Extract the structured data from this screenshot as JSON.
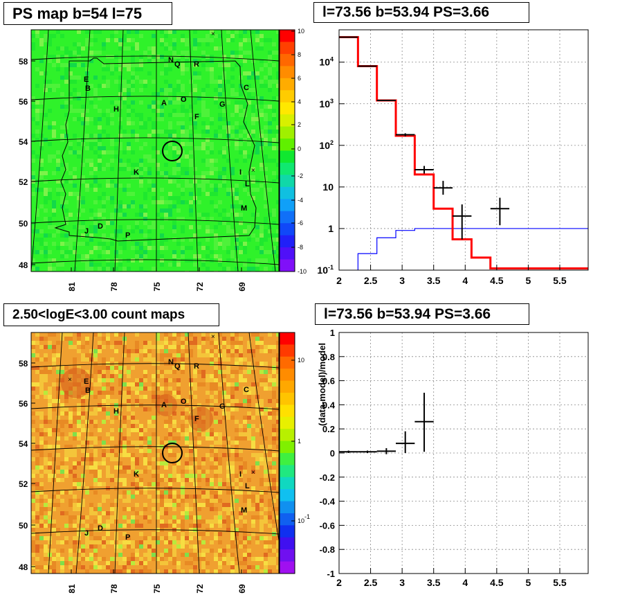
{
  "panels": {
    "top_left_title": "PS map b=54 l=75",
    "top_right_title": "l=73.56 b=53.94 PS=3.66",
    "bottom_left_title": "2.50<logE<3.00 count maps",
    "bottom_right_title": "l=73.56 b=53.94 PS=3.66"
  },
  "colors": {
    "ps_map_fill": "#2ff22a",
    "count_map_fill": "#f0a030",
    "model_red": "#ff0000",
    "background_blue": "#0000ff",
    "data_black": "#000000"
  },
  "chart_data": [
    {
      "type": "heatmap",
      "id": "ps_map",
      "x_ticks": [
        "81",
        "78",
        "75",
        "72",
        "69"
      ],
      "y_ticks": [
        "48",
        "50",
        "52",
        "54",
        "56",
        "58"
      ],
      "colorbar": {
        "min": -10,
        "max": 10,
        "ticks": [
          "10",
          "8",
          "6",
          "4",
          "2",
          "0",
          "-2",
          "-4",
          "-6",
          "-8",
          "-10"
        ]
      },
      "source_labels": [
        "N",
        "Q",
        "R",
        "E",
        "B",
        "C",
        "A",
        "O",
        "H",
        "G",
        "F",
        "K",
        "I",
        "L",
        "M",
        "D",
        "J",
        "P"
      ],
      "marked_position": {
        "l": 73.56,
        "b": 53.94
      }
    },
    {
      "type": "line",
      "id": "spectrum",
      "x_ticks": [
        "2",
        "2.5",
        "3",
        "3.5",
        "4",
        "4.5",
        "5",
        "5.5"
      ],
      "y_ticks": [
        "10^-1",
        "1",
        "10",
        "10^2",
        "10^3",
        "10^4"
      ],
      "xlim": [
        2,
        5.95
      ],
      "ylim": [
        0.1,
        60000
      ],
      "log_y": true,
      "grid": true,
      "model_steps": [
        {
          "x0": 2.0,
          "x1": 2.3,
          "y": 40000
        },
        {
          "x0": 2.3,
          "x1": 2.6,
          "y": 8000
        },
        {
          "x0": 2.6,
          "x1": 2.9,
          "y": 1200
        },
        {
          "x0": 2.9,
          "x1": 3.2,
          "y": 170
        },
        {
          "x0": 3.2,
          "x1": 3.5,
          "y": 20
        },
        {
          "x0": 3.5,
          "x1": 3.8,
          "y": 3
        },
        {
          "x0": 3.8,
          "x1": 4.1,
          "y": 0.55
        },
        {
          "x0": 4.1,
          "x1": 4.4,
          "y": 0.2
        },
        {
          "x0": 4.4,
          "x1": 5.95,
          "y": 0.11
        }
      ],
      "background_steps": [
        {
          "x0": 2.3,
          "x1": 2.6,
          "y": 0.25
        },
        {
          "x0": 2.6,
          "x1": 2.9,
          "y": 0.6
        },
        {
          "x0": 2.9,
          "x1": 3.2,
          "y": 0.9
        },
        {
          "x0": 3.2,
          "x1": 5.95,
          "y": 1.0
        }
      ],
      "data_points": [
        {
          "x": 2.15,
          "y": 40000,
          "xerr": 0.15,
          "ylo": 40000,
          "yhi": 40000
        },
        {
          "x": 2.45,
          "y": 8000,
          "xerr": 0.15,
          "ylo": 8000,
          "yhi": 8000
        },
        {
          "x": 2.75,
          "y": 1200,
          "xerr": 0.15,
          "ylo": 1200,
          "yhi": 1200
        },
        {
          "x": 3.05,
          "y": 180,
          "xerr": 0.15,
          "ylo": 165,
          "yhi": 195
        },
        {
          "x": 3.35,
          "y": 26,
          "xerr": 0.15,
          "ylo": 21,
          "yhi": 32
        },
        {
          "x": 3.65,
          "y": 9.5,
          "xerr": 0.15,
          "ylo": 6.5,
          "yhi": 14
        },
        {
          "x": 3.95,
          "y": 2,
          "xerr": 0.15,
          "ylo": 0.55,
          "yhi": 3.8
        },
        {
          "x": 4.55,
          "y": 3,
          "xerr": 0.15,
          "ylo": 1.2,
          "yhi": 5.5
        }
      ]
    },
    {
      "type": "heatmap",
      "id": "count_map",
      "x_ticks": [
        "81",
        "78",
        "75",
        "72",
        "69"
      ],
      "y_ticks": [
        "48",
        "50",
        "52",
        "54",
        "56",
        "58"
      ],
      "colorbar": {
        "log": true,
        "ticks": [
          "10",
          "1",
          "10^-1"
        ]
      },
      "source_labels": [
        "N",
        "Q",
        "R",
        "E",
        "B",
        "C",
        "A",
        "O",
        "H",
        "G",
        "F",
        "K",
        "I",
        "L",
        "M",
        "D",
        "J",
        "P"
      ],
      "marked_position": {
        "l": 73.56,
        "b": 53.94
      }
    },
    {
      "type": "scatter",
      "id": "residuals",
      "ylabel": "(data-model)/model",
      "x_ticks": [
        "2",
        "2.5",
        "3",
        "3.5",
        "4",
        "4.5",
        "5",
        "5.5"
      ],
      "y_ticks": [
        "1",
        "0.8",
        "0.6",
        "0.4",
        "0.2",
        "0",
        "-0.2",
        "-0.4",
        "-0.6",
        "-0.8",
        "-1"
      ],
      "xlim": [
        2,
        5.95
      ],
      "ylim": [
        -1,
        1
      ],
      "grid": true,
      "data_points": [
        {
          "x": 2.15,
          "y": 0.01,
          "xerr": 0.15,
          "ylo": 0.0,
          "yhi": 0.02
        },
        {
          "x": 2.45,
          "y": 0.01,
          "xerr": 0.15,
          "ylo": 0.0,
          "yhi": 0.02
        },
        {
          "x": 2.75,
          "y": 0.015,
          "xerr": 0.15,
          "ylo": -0.01,
          "yhi": 0.04
        },
        {
          "x": 3.05,
          "y": 0.08,
          "xerr": 0.15,
          "ylo": 0.0,
          "yhi": 0.18
        },
        {
          "x": 3.35,
          "y": 0.26,
          "xerr": 0.15,
          "ylo": 0.01,
          "yhi": 0.5
        }
      ]
    }
  ]
}
